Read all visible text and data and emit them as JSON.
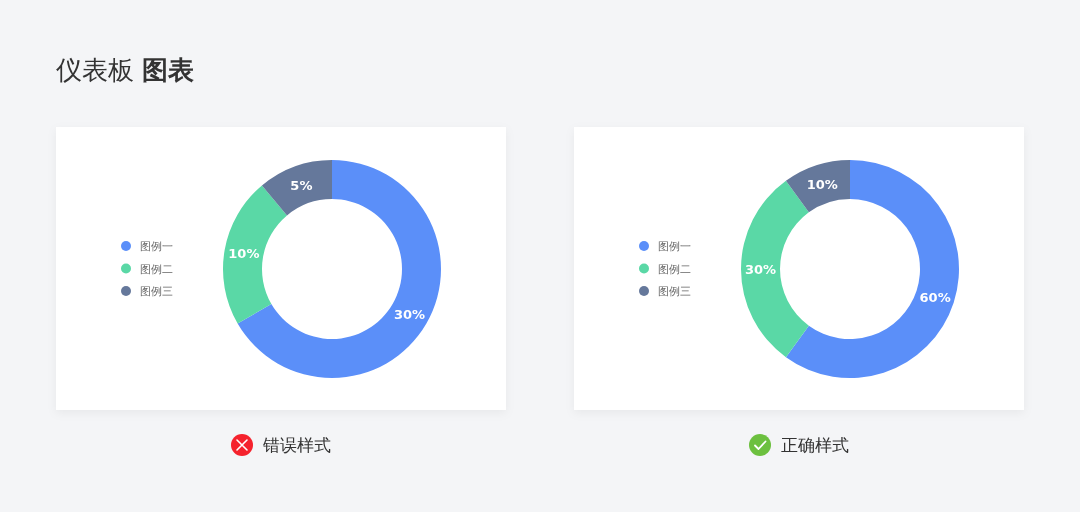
{
  "chart_data": [
    {
      "type": "donut",
      "title": "仪表板 **图表**",
      "categories": [
        "图例一",
        "图例二",
        "图例三"
      ],
      "values": [
        30,
        10,
        5
      ],
      "value_labels": [
        "30%",
        "10%",
        "5%"
      ],
      "colors": [
        "#5b8ff9",
        "#5ad8a6",
        "#65789b"
      ],
      "legend": "left",
      "annotations": [
        "错误样式"
      ]
    },
    {
      "type": "donut",
      "categories": [
        "图例一",
        "图例二",
        "图例三"
      ],
      "values": [
        60,
        30,
        10
      ],
      "value_labels": [
        "60%",
        "30%",
        "10%"
      ],
      "colors": [
        "#5b8ff9",
        "#5ad8a6",
        "#65789b"
      ],
      "legend": "left",
      "annotations": [
        "正确样式"
      ]
    }
  ]
}
